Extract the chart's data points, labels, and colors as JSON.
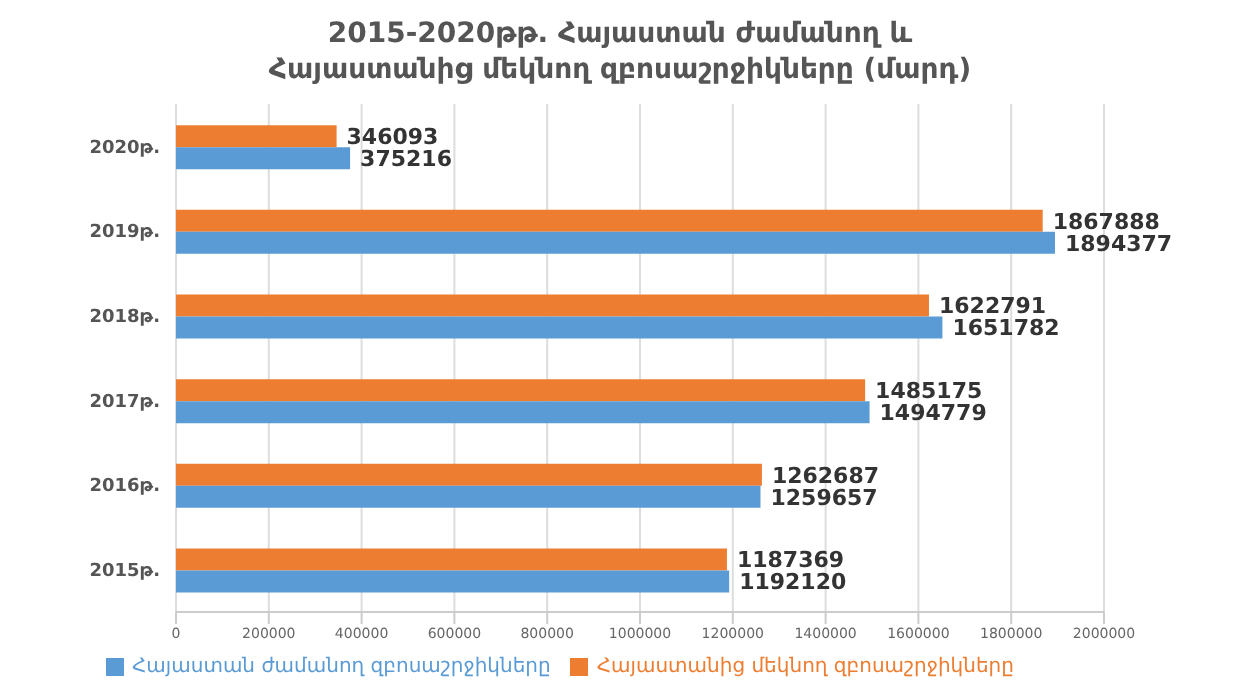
{
  "chart_data": {
    "type": "bar",
    "orientation": "horizontal",
    "title": "2015-2020թթ. Հայաստան ժամանող և Հայաստանից մեկնող զբոսաշրջիկները (մարդ)",
    "categories": [
      "2020թ.",
      "2019թ.",
      "2018թ.",
      "2017թ.",
      "2016թ.",
      "2015թ."
    ],
    "series": [
      {
        "name": "Հայաստանից մեկնող զբոսաշրջիկները",
        "color": "#ed7d31",
        "values": [
          346093,
          1867888,
          1622791,
          1485175,
          1262687,
          1187369
        ]
      },
      {
        "name": "Հայաստան ժամանող զբոսաշրջիկները",
        "color": "#5b9bd5",
        "values": [
          375216,
          1894377,
          1651782,
          1494779,
          1259657,
          1192120
        ]
      }
    ],
    "xlim": [
      0,
      2000000
    ],
    "xticks": [
      0,
      200000,
      400000,
      600000,
      800000,
      1000000,
      1200000,
      1400000,
      1600000,
      1800000,
      2000000
    ],
    "grid": "x",
    "legend": "bottom",
    "data_labels": true
  }
}
